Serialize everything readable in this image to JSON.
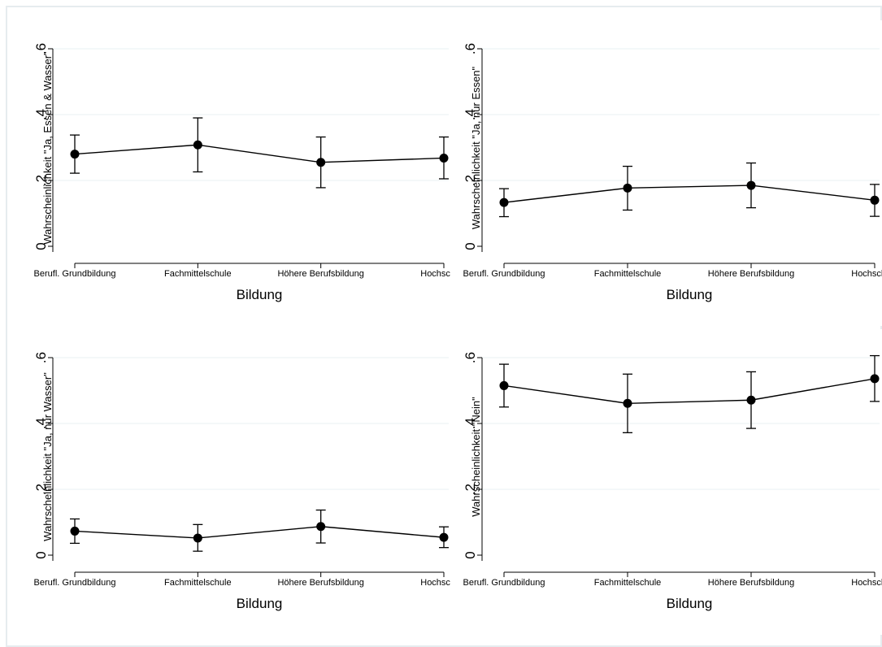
{
  "chart_data": [
    {
      "type": "line",
      "xlabel": "Bildung",
      "ylabel": "Wahrscheinlichkeit \"Ja, Essen & Wasser\"",
      "categories": [
        "Berufl. Grundbildung",
        "Fachmittelschule",
        "Höhere Berufsbildung",
        "Hochschule"
      ],
      "values": [
        0.28,
        0.308,
        0.255,
        0.268
      ],
      "lower": [
        0.222,
        0.226,
        0.178,
        0.205
      ],
      "upper": [
        0.338,
        0.39,
        0.332,
        0.332
      ],
      "ylim": [
        0,
        0.6
      ],
      "yticks": [
        0,
        0.2,
        0.4,
        0.6
      ],
      "ytick_labels": [
        "0",
        ".2",
        ".4",
        ".6"
      ],
      "grid": true
    },
    {
      "type": "line",
      "xlabel": "Bildung",
      "ylabel": "Wahrscheinlichkeit \"Ja, nur Essen\"",
      "categories": [
        "Berufl. Grundbildung",
        "Fachmittelschule",
        "Höhere Berufsbildung",
        "Hochschule"
      ],
      "values": [
        0.133,
        0.177,
        0.185,
        0.14
      ],
      "lower": [
        0.09,
        0.11,
        0.117,
        0.091
      ],
      "upper": [
        0.175,
        0.243,
        0.253,
        0.188
      ],
      "ylim": [
        0,
        0.6
      ],
      "yticks": [
        0,
        0.2,
        0.4,
        0.6
      ],
      "ytick_labels": [
        "0",
        ".2",
        ".4",
        ".6"
      ],
      "grid": true
    },
    {
      "type": "line",
      "xlabel": "Bildung",
      "ylabel": "Wahrscheinlichkeit \"Ja, nur Wasser\"",
      "categories": [
        "Berufl. Grundbildung",
        "Fachmittelschule",
        "Höhere Berufsbildung",
        "Hochschule"
      ],
      "values": [
        0.073,
        0.052,
        0.087,
        0.054
      ],
      "lower": [
        0.036,
        0.012,
        0.037,
        0.023
      ],
      "upper": [
        0.11,
        0.093,
        0.137,
        0.086
      ],
      "ylim": [
        0,
        0.6
      ],
      "yticks": [
        0,
        0.2,
        0.4,
        0.6
      ],
      "ytick_labels": [
        "0",
        ".2",
        ".4",
        ".6"
      ],
      "grid": true
    },
    {
      "type": "line",
      "xlabel": "Bildung",
      "ylabel": "Wahrscheinlichkeit \"Nein\"",
      "categories": [
        "Berufl. Grundbildung",
        "Fachmittelschule",
        "Höhere Berufsbildung",
        "Hochschule"
      ],
      "values": [
        0.515,
        0.461,
        0.471,
        0.536
      ],
      "lower": [
        0.45,
        0.372,
        0.385,
        0.467
      ],
      "upper": [
        0.58,
        0.55,
        0.557,
        0.606
      ],
      "ylim": [
        0,
        0.6
      ],
      "yticks": [
        0,
        0.2,
        0.4,
        0.6
      ],
      "ytick_labels": [
        "0",
        ".2",
        ".4",
        ".6"
      ],
      "grid": true
    }
  ]
}
